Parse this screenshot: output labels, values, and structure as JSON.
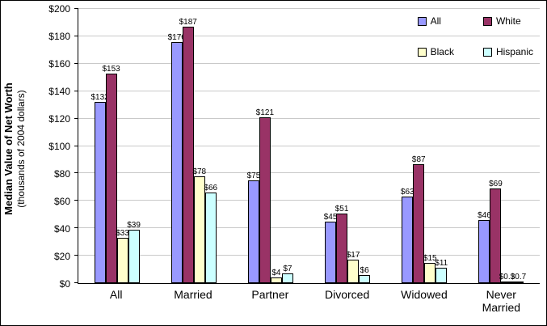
{
  "chart_data": {
    "type": "bar",
    "title": "",
    "ylabel": "Median Value of Net Worth",
    "ylabel_sub": "(thousands of 2004 dollars)",
    "categories": [
      "All",
      "Married",
      "Partner",
      "Divorced",
      "Widowed",
      "Never Married"
    ],
    "series": [
      {
        "name": "All",
        "color": "#9999FF",
        "values": [
          132,
          176,
          75,
          45,
          63,
          46
        ],
        "labels": [
          "$132",
          "$176",
          "$75",
          "$45",
          "$63",
          "$46"
        ]
      },
      {
        "name": "White",
        "color": "#993366",
        "values": [
          153,
          187,
          121,
          51,
          87,
          69
        ],
        "labels": [
          "$153",
          "$187",
          "$121",
          "$51",
          "$87",
          "$69"
        ]
      },
      {
        "name": "Black",
        "color": "#FFFFCC",
        "values": [
          33,
          78,
          4,
          17,
          15,
          0.3
        ],
        "labels": [
          "$33",
          "$78",
          "$4",
          "$17",
          "$15",
          "$0.3"
        ]
      },
      {
        "name": "Hispanic",
        "color": "#CCFFFF",
        "values": [
          39,
          66,
          7,
          6,
          11,
          0.7
        ],
        "labels": [
          "$39",
          "$66",
          "$7",
          "$6",
          "$11",
          "$0.7"
        ]
      }
    ],
    "ylim": [
      0,
      200
    ],
    "ytick_step": 20,
    "ytick_prefix": "$",
    "grid": true,
    "legend_position": "top-right",
    "colors": {
      "gridline": "#C9C9C9",
      "axis": "#000000",
      "bar_border": "#000000",
      "background": "#FFFFFF"
    }
  }
}
